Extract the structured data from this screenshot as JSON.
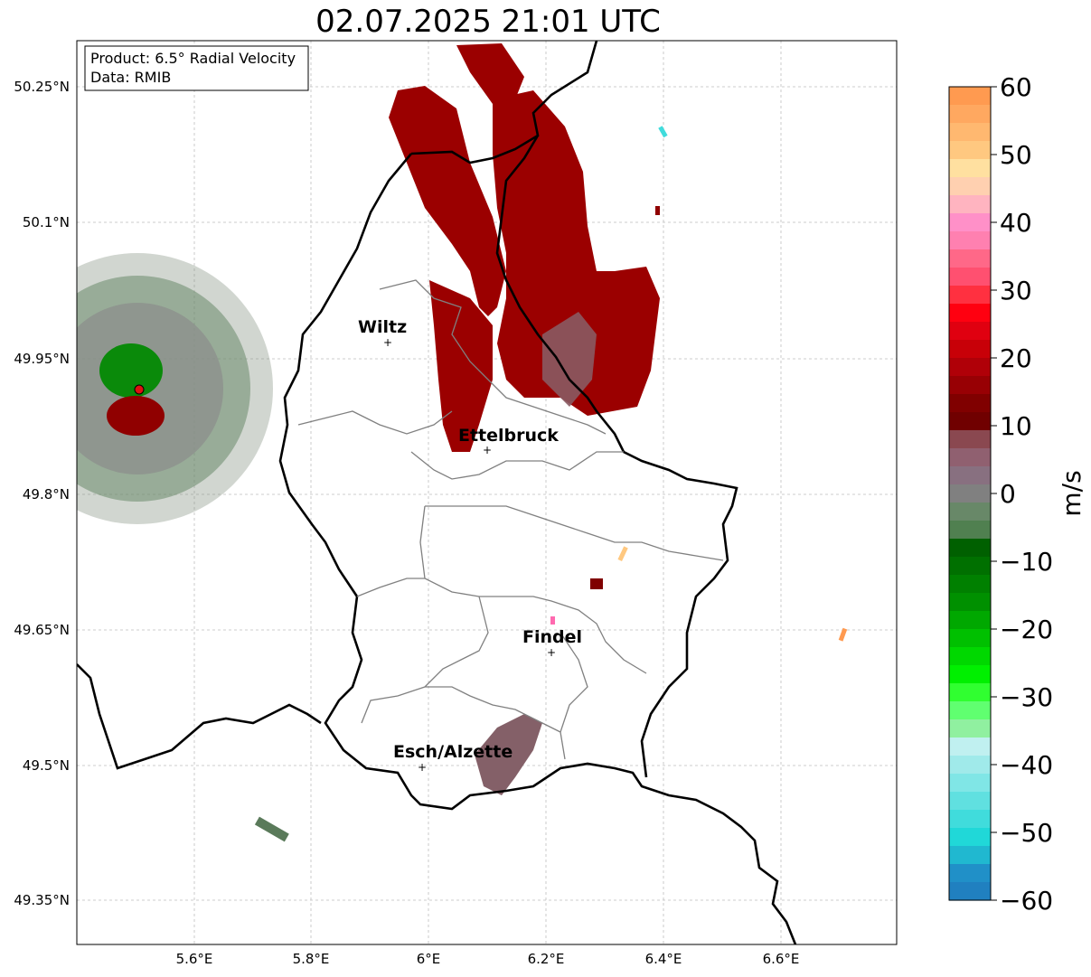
{
  "title": "02.07.2025 21:01 UTC",
  "info_box": {
    "product": "Product: 6.5° Radial Velocity",
    "data": "Data: RMIB"
  },
  "axes": {
    "lon_ticks": [
      "5.6°E",
      "5.8°E",
      "6°E",
      "6.2°E",
      "6.4°E",
      "6.6°E"
    ],
    "lat_ticks": [
      "50.25°N",
      "50.1°N",
      "49.95°N",
      "49.8°N",
      "49.65°N",
      "49.5°N",
      "49.35°N"
    ]
  },
  "cities": [
    {
      "name": "Wiltz"
    },
    {
      "name": "Ettelbruck"
    },
    {
      "name": "Findel"
    },
    {
      "name": "Esch/Alzette"
    }
  ],
  "colorbar": {
    "label": "m/s",
    "ticks": [
      "60",
      "50",
      "40",
      "30",
      "20",
      "10",
      "0",
      "−10",
      "−20",
      "−30",
      "−40",
      "−50",
      "−60"
    ],
    "colors": [
      "#ff9a50",
      "#ffa860",
      "#ffb870",
      "#ffc880",
      "#ffe0a0",
      "#ffd0b0",
      "#ffb4c0",
      "#ff90c8",
      "#ff80b0",
      "#ff6888",
      "#ff5070",
      "#ff3040",
      "#ff0010",
      "#e00010",
      "#c80008",
      "#b00008",
      "#980004",
      "#800000",
      "#700000",
      "#8a4850",
      "#906070",
      "#887080",
      "#808080",
      "#688868",
      "#508050",
      "#006000",
      "#007000",
      "#008000",
      "#009000",
      "#00a800",
      "#00c000",
      "#00d800",
      "#00f000",
      "#30ff30",
      "#60ff70",
      "#90f0a0",
      "#c0f0f0",
      "#a0eaea",
      "#80e6e6",
      "#60e0e0",
      "#40dcdc",
      "#20d8d8",
      "#20b8d0",
      "#2090c8",
      "#2080c0"
    ]
  },
  "colors": {
    "outbound": "#9b0000",
    "inbound": "#1a8a1a",
    "neutral": "#8a7078",
    "radar": "#e00000"
  }
}
